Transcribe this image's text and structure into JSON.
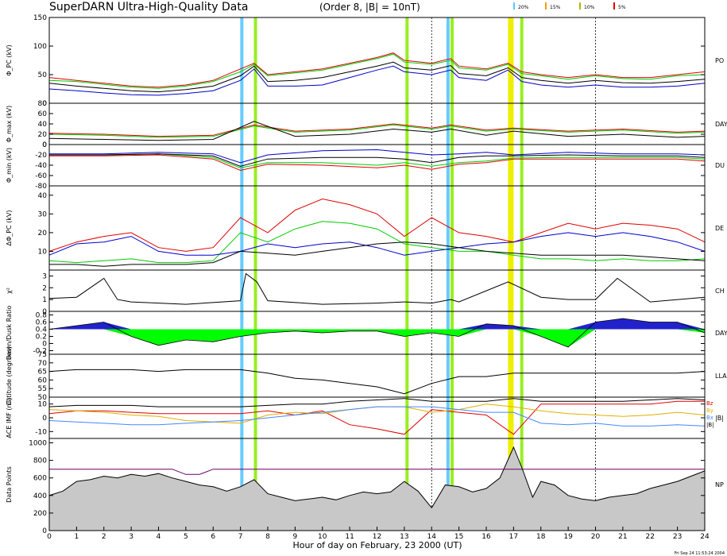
{
  "header": {
    "title": "SuperDARN Ultra-High-Quality Data",
    "subtitle": "(Order 8, |B| = 10nT)",
    "pct_legend": [
      {
        "label": "20%",
        "color": "#5bc8f5"
      },
      {
        "label": "15%",
        "color": "#f0a000"
      },
      {
        "label": "10%",
        "color": "#b8b800"
      },
      {
        "label": "5%",
        "color": "#e00000"
      }
    ]
  },
  "footer": {
    "xlabel": "Hour of day on February, 23 2000 (UT)",
    "timestamp": "Fri Sep 24 11:53:24 2004"
  },
  "colors": {
    "red": "#e00000",
    "orange": "#ff9900",
    "green": "#00cc00",
    "blue": "#0000cc",
    "black": "#000000",
    "cyan_band": "#66ccff",
    "lime_band": "#99ee22",
    "yellow_band": "#eeee00",
    "fill_green": "#00ff00",
    "fill_blue": "#2222cc",
    "fill_gray": "#c8c8c8",
    "purple": "#660066"
  },
  "chart_data": [
    {
      "type": "line",
      "panel": "phi_pc",
      "ylabel": "Φ_PC (kV)",
      "ylim": [
        0,
        150
      ],
      "yticks": [
        0,
        50,
        100,
        150
      ],
      "right_label": "PO",
      "x": [
        0,
        1,
        2,
        3,
        4,
        5,
        6,
        7,
        7.5,
        8,
        9,
        10,
        11,
        12,
        12.6,
        13,
        14,
        14.7,
        15,
        16,
        16.8,
        17.3,
        18,
        19,
        20,
        21,
        22,
        23,
        24
      ],
      "series": [
        {
          "color": "#e00000",
          "values": [
            45,
            40,
            35,
            30,
            28,
            32,
            40,
            60,
            70,
            50,
            55,
            60,
            70,
            80,
            88,
            75,
            70,
            78,
            65,
            60,
            70,
            55,
            50,
            45,
            50,
            45,
            45,
            50,
            55
          ]
        },
        {
          "color": "#00cc00",
          "values": [
            40,
            38,
            33,
            28,
            26,
            30,
            38,
            55,
            68,
            48,
            53,
            58,
            68,
            78,
            86,
            72,
            68,
            75,
            62,
            58,
            68,
            52,
            48,
            42,
            48,
            43,
            42,
            48,
            50
          ]
        },
        {
          "color": "#0000cc",
          "values": [
            25,
            22,
            18,
            15,
            14,
            17,
            22,
            40,
            60,
            30,
            30,
            32,
            45,
            58,
            65,
            55,
            50,
            58,
            45,
            40,
            58,
            38,
            32,
            28,
            32,
            28,
            28,
            30,
            35
          ]
        },
        {
          "color": "#000000",
          "values": [
            35,
            30,
            26,
            22,
            20,
            24,
            30,
            48,
            65,
            38,
            40,
            45,
            55,
            65,
            72,
            62,
            58,
            66,
            52,
            48,
            62,
            45,
            40,
            35,
            40,
            36,
            35,
            38,
            42
          ]
        }
      ]
    },
    {
      "type": "line",
      "panel": "phi_max",
      "ylabel": "Φ_max (kV)",
      "ylim": [
        0,
        80
      ],
      "yticks": [
        0,
        20,
        40,
        60,
        80
      ],
      "right_label": "DAY",
      "x": [
        0,
        2,
        4,
        6,
        7.5,
        9,
        11,
        12.6,
        14,
        14.7,
        16,
        17,
        19,
        21,
        23,
        24
      ],
      "series": [
        {
          "color": "#e00000",
          "values": [
            22,
            20,
            16,
            18,
            38,
            26,
            30,
            40,
            32,
            38,
            28,
            32,
            26,
            30,
            24,
            26
          ]
        },
        {
          "color": "#00cc00",
          "values": [
            20,
            18,
            14,
            16,
            36,
            24,
            28,
            38,
            30,
            36,
            26,
            30,
            24,
            28,
            22,
            24
          ]
        },
        {
          "color": "#000000",
          "values": [
            12,
            10,
            8,
            10,
            45,
            16,
            20,
            30,
            24,
            30,
            18,
            26,
            16,
            20,
            14,
            16
          ]
        }
      ]
    },
    {
      "type": "line",
      "panel": "phi_min",
      "ylabel": "Φ_min (kV)",
      "ylim": [
        -80,
        0
      ],
      "yticks": [
        0,
        -20,
        -40,
        -60,
        -80
      ],
      "right_label": "DU",
      "x": [
        0,
        2,
        4,
        6,
        7,
        8,
        10,
        12,
        13,
        14,
        15,
        16,
        17,
        19,
        21,
        23,
        24
      ],
      "series": [
        {
          "color": "#e00000",
          "values": [
            -22,
            -22,
            -20,
            -28,
            -50,
            -38,
            -40,
            -45,
            -40,
            -48,
            -38,
            -35,
            -28,
            -28,
            -28,
            -28,
            -32
          ]
        },
        {
          "color": "#00cc00",
          "values": [
            -20,
            -20,
            -18,
            -25,
            -45,
            -35,
            -35,
            -40,
            -35,
            -42,
            -35,
            -32,
            -26,
            -25,
            -25,
            -25,
            -28
          ]
        },
        {
          "color": "#0000cc",
          "values": [
            -18,
            -18,
            -15,
            -18,
            -35,
            -20,
            -12,
            -10,
            -15,
            -20,
            -18,
            -15,
            -20,
            -15,
            -18,
            -18,
            -20
          ]
        },
        {
          "color": "#000000",
          "values": [
            -20,
            -20,
            -18,
            -22,
            -42,
            -28,
            -25,
            -25,
            -28,
            -35,
            -25,
            -22,
            -22,
            -20,
            -22,
            -22,
            -25
          ]
        }
      ]
    },
    {
      "type": "line",
      "panel": "delta_phi",
      "ylabel": "ΔΦ_PC (kV)",
      "ylim": [
        0,
        45
      ],
      "yticks": [
        10,
        20,
        30,
        40
      ],
      "right_label": "DE",
      "x": [
        0,
        1,
        2,
        3,
        4,
        5,
        6,
        7,
        8,
        9,
        10,
        11,
        12,
        13,
        14,
        15,
        16,
        17,
        18,
        19,
        20,
        21,
        22,
        23,
        24
      ],
      "series": [
        {
          "color": "#e00000",
          "values": [
            10,
            15,
            18,
            20,
            12,
            10,
            12,
            28,
            20,
            32,
            38,
            35,
            30,
            18,
            28,
            20,
            18,
            15,
            20,
            25,
            22,
            25,
            24,
            22,
            15
          ]
        },
        {
          "color": "#00cc00",
          "values": [
            5,
            4,
            5,
            6,
            4,
            4,
            5,
            20,
            15,
            22,
            26,
            25,
            22,
            14,
            12,
            10,
            10,
            8,
            6,
            6,
            5,
            6,
            5,
            5,
            6
          ]
        },
        {
          "color": "#0000cc",
          "values": [
            8,
            14,
            15,
            18,
            10,
            8,
            8,
            10,
            14,
            12,
            14,
            15,
            12,
            8,
            10,
            12,
            14,
            15,
            18,
            20,
            18,
            20,
            18,
            15,
            10
          ]
        },
        {
          "color": "#000000",
          "values": [
            3,
            3,
            2,
            3,
            3,
            3,
            4,
            10,
            9,
            8,
            10,
            12,
            14,
            15,
            14,
            12,
            10,
            9,
            8,
            8,
            8,
            8,
            7,
            6,
            5
          ]
        }
      ]
    },
    {
      "type": "line",
      "panel": "chi",
      "ylabel": "χ²",
      "ylim": [
        0,
        3.5
      ],
      "yticks": [
        0,
        1,
        2,
        3
      ],
      "right_label": "CH",
      "x": [
        0,
        1,
        2,
        2.5,
        3,
        5,
        7,
        7.2,
        7.6,
        8,
        10,
        12,
        13,
        14,
        14.7,
        15,
        16.8,
        18,
        19,
        20,
        20.8,
        22,
        24
      ],
      "series": [
        {
          "color": "#000000",
          "values": [
            1.1,
            1.2,
            2.8,
            1.0,
            0.8,
            0.6,
            0.9,
            3.2,
            2.5,
            0.9,
            0.6,
            0.7,
            0.8,
            0.7,
            1.0,
            0.8,
            2.5,
            1.2,
            1.0,
            1.0,
            2.8,
            0.8,
            1.2
          ]
        }
      ]
    },
    {
      "type": "area",
      "panel": "dawn_dusk",
      "ylabel": "Dawn/Dusk Ratio",
      "ylim": [
        -0.3,
        0.9
      ],
      "yticks": [
        -0.2,
        0.0,
        0.2,
        0.4,
        0.6,
        0.8
      ],
      "baseline": 0.4,
      "right_label": "DAY",
      "x": [
        0,
        1,
        2,
        3,
        4,
        5,
        6,
        7,
        8,
        9,
        10,
        11,
        12,
        13,
        14,
        15,
        16,
        17,
        18,
        19,
        20,
        21,
        22,
        23,
        24
      ],
      "series": [
        {
          "color": "#000000",
          "values": [
            0.4,
            0.5,
            0.6,
            0.2,
            -0.05,
            0.1,
            0.05,
            0.2,
            0.3,
            0.35,
            0.3,
            0.35,
            0.35,
            0.2,
            0.3,
            0.2,
            0.55,
            0.5,
            0.2,
            -0.1,
            0.6,
            0.7,
            0.6,
            0.6,
            0.3
          ]
        }
      ]
    },
    {
      "type": "line",
      "panel": "latitude",
      "ylabel": "Latitude (degrees)",
      "ylim": [
        50,
        75
      ],
      "yticks": [
        50,
        55,
        60,
        65,
        70,
        75
      ],
      "right_label": "LLA",
      "x": [
        0,
        1,
        2,
        3,
        4,
        5,
        6,
        7,
        8,
        9,
        10,
        11,
        12,
        13,
        14,
        15,
        16,
        17,
        18,
        19,
        20,
        21,
        22,
        23,
        24
      ],
      "series": [
        {
          "color": "#000000",
          "values": [
            65,
            66,
            66,
            66,
            65,
            66,
            66,
            66,
            64,
            61,
            60,
            58,
            56,
            52,
            58,
            62,
            62,
            64,
            64,
            64,
            64,
            64,
            64,
            64,
            65
          ]
        }
      ]
    },
    {
      "type": "line",
      "panel": "imf",
      "ylabel": "ACE IMF (nT)",
      "ylim": [
        -15,
        15
      ],
      "yticks": [
        -10,
        0,
        10
      ],
      "legend": [
        "Bz",
        "By",
        "Bx",
        "|B|"
      ],
      "right_label": "|B|",
      "x": [
        0,
        1,
        2,
        3,
        4,
        5,
        6,
        7,
        8,
        9,
        10,
        11,
        12,
        13,
        14,
        15,
        16,
        17,
        18,
        19,
        20,
        21,
        22,
        23,
        24
      ],
      "series": [
        {
          "name": "Bz",
          "color": "#e00000",
          "values": [
            3,
            5,
            5,
            4,
            3,
            3,
            3,
            3,
            5,
            2,
            5,
            -5,
            -8,
            -12,
            6,
            4,
            2,
            -12,
            10,
            10,
            10,
            10,
            10,
            12,
            12
          ]
        },
        {
          "name": "By",
          "color": "#e0b000",
          "values": [
            6,
            5,
            4,
            2,
            1,
            -2,
            -3,
            -4,
            2,
            4,
            3,
            6,
            8,
            8,
            4,
            6,
            10,
            8,
            5,
            3,
            2,
            1,
            2,
            4,
            2
          ]
        },
        {
          "name": "Bx",
          "color": "#4488ff",
          "values": [
            -2,
            -3,
            -4,
            -5,
            -5,
            -4,
            -3,
            -2,
            0,
            2,
            4,
            6,
            8,
            8,
            8,
            6,
            4,
            4,
            -4,
            -5,
            -4,
            -6,
            -6,
            -5,
            -6
          ]
        },
        {
          "name": "|B|",
          "color": "#000000",
          "values": [
            8,
            9,
            9,
            9,
            8,
            8,
            8,
            8,
            9,
            10,
            10,
            12,
            13,
            14,
            12,
            12,
            12,
            14,
            12,
            12,
            12,
            12,
            13,
            14,
            13
          ]
        }
      ]
    },
    {
      "type": "area",
      "panel": "data_points",
      "ylabel": "Data Points",
      "ylim": [
        0,
        1050
      ],
      "yticks": [
        0,
        200,
        400,
        600,
        800,
        1000
      ],
      "right_label": "NP",
      "x": [
        0,
        0.5,
        1,
        1.5,
        2,
        2.5,
        3,
        3.5,
        4,
        4.5,
        5,
        5.5,
        6,
        6.5,
        7,
        7.5,
        8,
        8.5,
        9,
        9.5,
        10,
        10.5,
        11,
        11.5,
        12,
        12.5,
        13,
        13.5,
        14,
        14.5,
        15,
        15.5,
        16,
        16.5,
        17,
        17.3,
        17.7,
        18,
        18.5,
        19,
        19.5,
        20,
        20.5,
        21,
        21.5,
        22,
        22.5,
        23,
        23.5,
        24
      ],
      "series": [
        {
          "color": "#000000",
          "values": [
            400,
            450,
            560,
            580,
            620,
            600,
            640,
            620,
            650,
            600,
            560,
            520,
            500,
            450,
            500,
            580,
            420,
            380,
            340,
            360,
            380,
            350,
            400,
            440,
            420,
            440,
            560,
            450,
            260,
            520,
            500,
            440,
            480,
            600,
            950,
            720,
            380,
            560,
            520,
            400,
            360,
            340,
            380,
            400,
            420,
            480,
            520,
            560,
            620,
            680
          ]
        },
        {
          "color": "#660066",
          "values": [
            700,
            700,
            700,
            700,
            700,
            700,
            700,
            700,
            700,
            700,
            640,
            640,
            700,
            700,
            700,
            700,
            700,
            700,
            700,
            700,
            700,
            700,
            700,
            700,
            700,
            700,
            700,
            700,
            700,
            700,
            700,
            700,
            700,
            700,
            700,
            700,
            700,
            700,
            700,
            700,
            700,
            700,
            700,
            700,
            700,
            700,
            700,
            700,
            700,
            700
          ]
        }
      ]
    }
  ],
  "x_axis": {
    "range": [
      0,
      24
    ],
    "ticks": [
      "0",
      "1",
      "2",
      "3",
      "4",
      "5",
      "6",
      "7",
      "8",
      "9",
      "10",
      "11",
      "12",
      "13",
      "14",
      "15",
      "16",
      "17",
      "18",
      "19",
      "20",
      "21",
      "22",
      "23",
      "24"
    ]
  },
  "bands": [
    {
      "x": 7.05,
      "color": "cyan"
    },
    {
      "x": 7.55,
      "color": "lime"
    },
    {
      "x": 13.1,
      "color": "lime"
    },
    {
      "x": 14.6,
      "color": "cyan"
    },
    {
      "x": 14.75,
      "color": "lime"
    },
    {
      "x": 16.9,
      "color": "yellow"
    },
    {
      "x": 17.3,
      "color": "lime"
    }
  ],
  "dashed_lines": [
    14.0,
    20.0
  ]
}
